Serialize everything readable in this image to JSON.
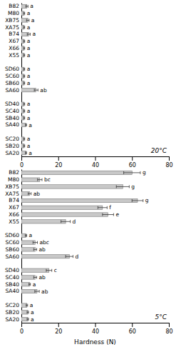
{
  "chart_data": [
    {
      "type": "bar",
      "orientation": "horizontal",
      "title": "20°C",
      "categories": [
        "B82",
        "M80",
        "XB75",
        "XA75",
        "B74",
        "X67",
        "X66",
        "X55",
        null,
        "SD60",
        "SC60",
        "SB60",
        "SA60",
        null,
        "SD40",
        "SC40",
        "SB40",
        "SA40",
        null,
        "SC20",
        "SB20",
        "SA20"
      ],
      "values": [
        3.0,
        1.5,
        3.5,
        1.5,
        4.0,
        1.5,
        1.5,
        1.5,
        null,
        1.5,
        1.5,
        1.5,
        8.0,
        null,
        1.5,
        1.5,
        1.5,
        2.5,
        null,
        1.5,
        1.5,
        2.5
      ],
      "errors": [
        0.6,
        0.3,
        0.7,
        0.3,
        0.8,
        0.3,
        0.3,
        0.3,
        null,
        0.3,
        0.3,
        0.3,
        1.0,
        null,
        0.3,
        0.3,
        0.3,
        0.3,
        null,
        0.3,
        0.3,
        0.3
      ],
      "annotations": [
        "a",
        "a",
        "a",
        "a",
        "a",
        "a",
        "a",
        "a",
        null,
        "a",
        "a",
        "a",
        "ab",
        null,
        "a",
        "a",
        "a",
        "a",
        null,
        "a",
        "a",
        "a"
      ],
      "color": "#c8c8c8",
      "xlim": [
        0,
        80
      ],
      "xticks": [
        0,
        20,
        40,
        60,
        80
      ]
    },
    {
      "type": "bar",
      "orientation": "horizontal",
      "title": "5°C",
      "xlabel": "Hardness (N)",
      "categories": [
        "B82",
        "M80",
        "XB75",
        "XA75",
        "B74",
        "X67",
        "X66",
        "X55",
        null,
        "SD60",
        "SC60",
        "SB60",
        "SA60",
        null,
        "SD40",
        "SC40",
        "SB40",
        "SA40",
        null,
        "SC20",
        "SB20",
        "SA20"
      ],
      "values": [
        60.0,
        10.0,
        55.0,
        4.5,
        63.0,
        44.0,
        47.0,
        24.0,
        null,
        2.5,
        7.5,
        7.5,
        26.0,
        null,
        15.0,
        7.5,
        4.5,
        8.5,
        null,
        3.0,
        3.5,
        3.5
      ],
      "errors": [
        4.5,
        1.2,
        3.5,
        0.8,
        3.0,
        2.5,
        3.0,
        2.5,
        null,
        0.4,
        1.2,
        0.8,
        2.0,
        null,
        1.5,
        0.8,
        0.4,
        1.2,
        null,
        0.4,
        0.4,
        0.4
      ],
      "annotations": [
        "g",
        "bc",
        "g",
        "ab",
        "g",
        "f",
        "e",
        "d",
        null,
        "a",
        "abc",
        "ab",
        "d",
        null,
        "c",
        "ab",
        "a",
        "ab",
        null,
        "a",
        "a",
        "a"
      ],
      "color": "#c8c8c8",
      "xlim": [
        0,
        80
      ],
      "xticks": [
        0,
        20,
        40,
        60,
        80
      ]
    }
  ]
}
